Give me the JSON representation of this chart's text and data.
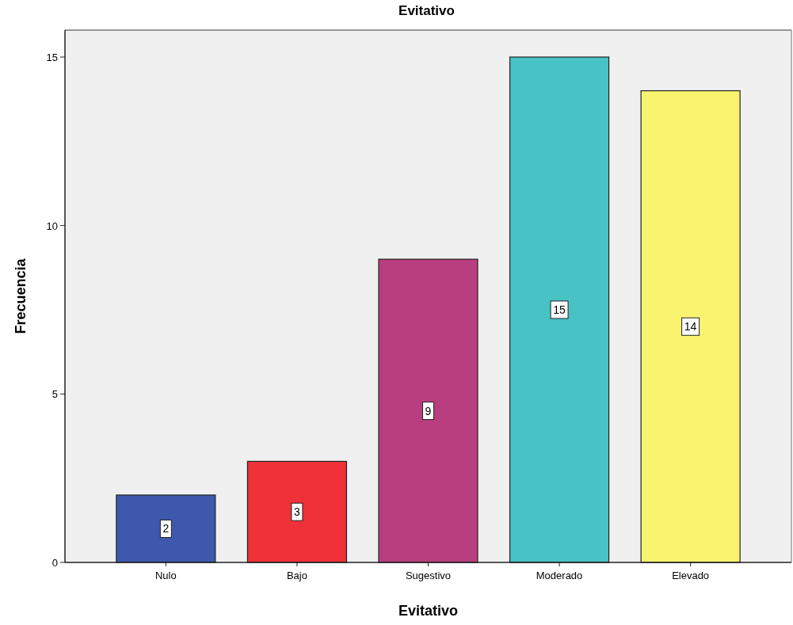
{
  "chart_data": {
    "type": "bar",
    "title": "Evitativo",
    "xlabel": "Evitativo",
    "ylabel": "Frecuencia",
    "categories": [
      "Nulo",
      "Bajo",
      "Sugestivo",
      "Moderado",
      "Elevado"
    ],
    "values": [
      2,
      3,
      9,
      15,
      14
    ],
    "colors": [
      "#3e58ac",
      "#ee3237",
      "#b93e7f",
      "#48c2c5",
      "#f8f470"
    ],
    "ylim": [
      0,
      15.8
    ],
    "yticks": [
      0,
      5,
      10,
      15
    ],
    "data_labels": true
  }
}
